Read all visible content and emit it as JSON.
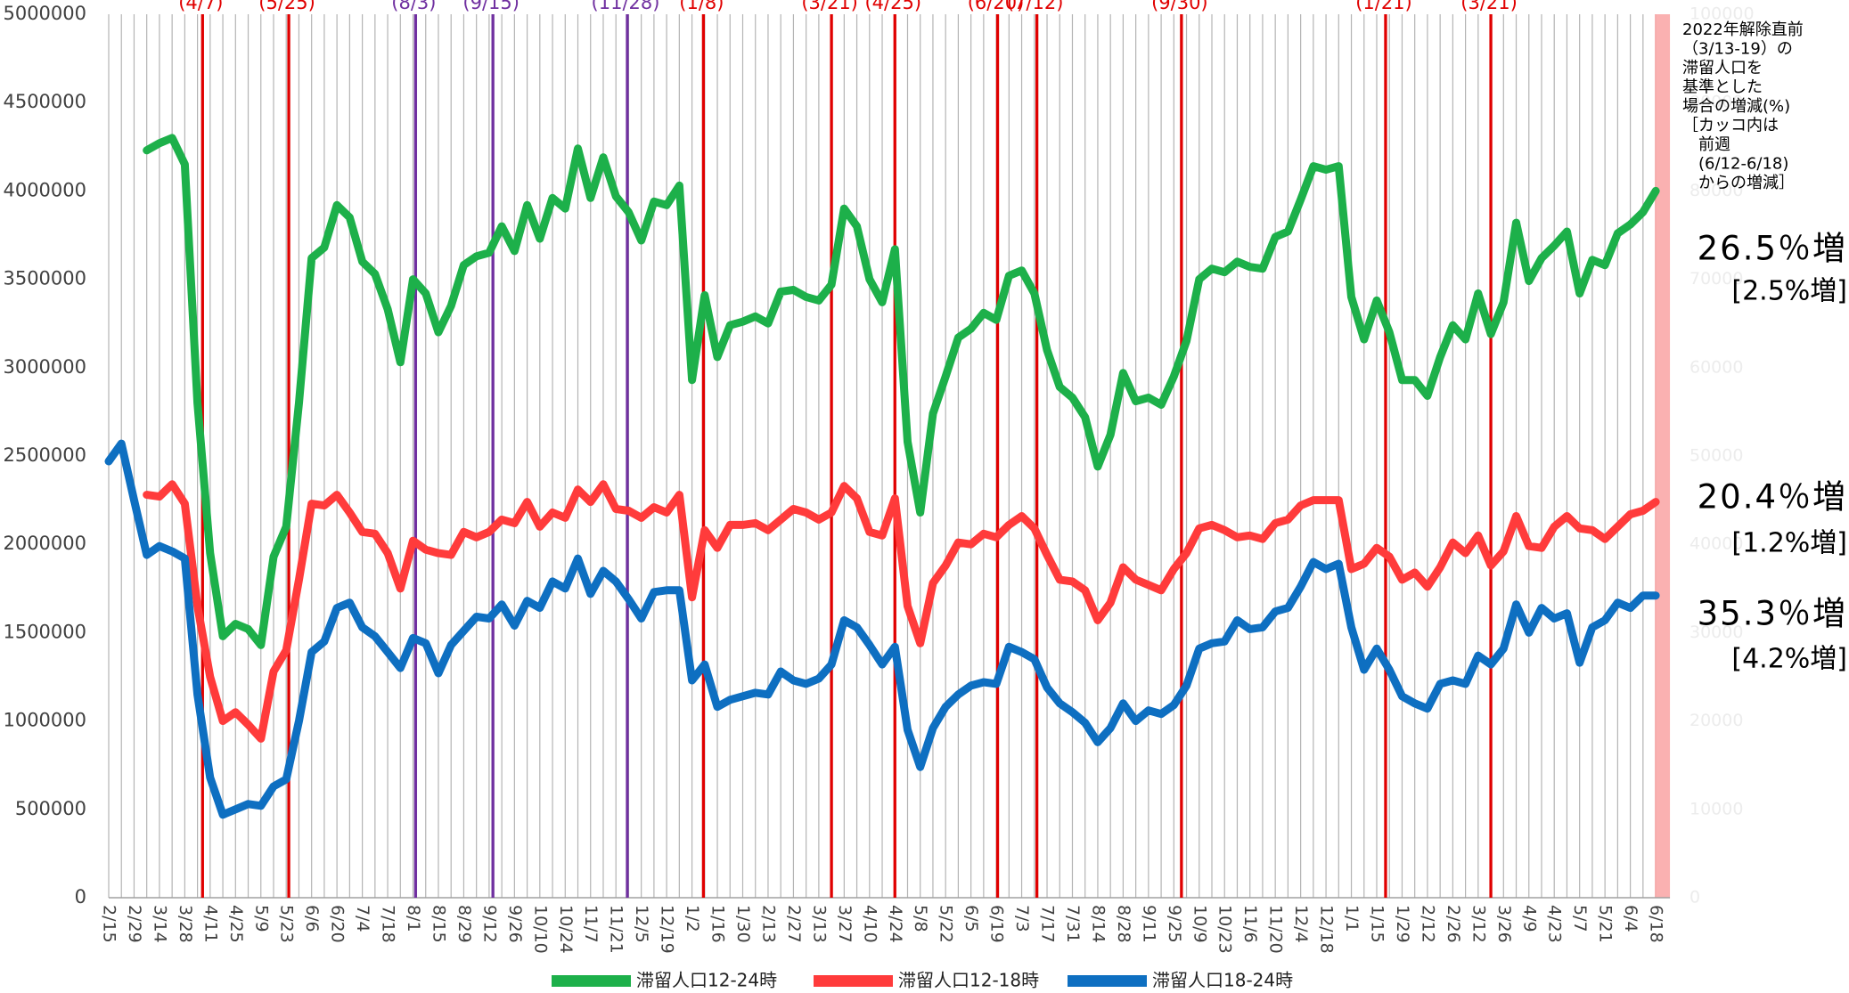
{
  "chart_data": {
    "type": "line",
    "categories": [
      "2/15",
      null,
      "2/29",
      null,
      "3/14",
      null,
      "3/28",
      null,
      "4/11",
      null,
      "4/25",
      null,
      "5/9",
      null,
      "5/23",
      null,
      "6/6",
      null,
      "6/20",
      null,
      "7/4",
      null,
      "7/18",
      null,
      "8/1",
      null,
      "8/15",
      null,
      "8/29",
      null,
      "9/12",
      null,
      "9/26",
      null,
      "10/10",
      null,
      "10/24",
      null,
      "11/7",
      null,
      "11/21",
      null,
      "12/5",
      null,
      "12/19",
      null,
      "1/2",
      null,
      "1/16",
      null,
      "1/30",
      null,
      "2/13",
      null,
      "2/27",
      null,
      "3/13",
      null,
      "3/27",
      null,
      "4/10",
      null,
      "4/24",
      null,
      "5/8",
      null,
      "5/22",
      null,
      "6/5",
      null,
      "6/19",
      null,
      "7/3",
      null,
      "7/17",
      null,
      "7/31",
      null,
      "8/14",
      null,
      "8/28",
      null,
      "9/11",
      null,
      "9/25",
      null,
      "10/9",
      null,
      "10/23",
      null,
      "11/6",
      null,
      "11/20",
      null,
      "12/4",
      null,
      "12/18",
      null,
      "1/1",
      null,
      "1/15",
      null,
      "1/29",
      null,
      "2/12",
      null,
      "2/26",
      null,
      "3/12",
      null,
      "3/26",
      null,
      "4/9",
      null,
      "4/23",
      null,
      "5/7",
      null,
      "5/21",
      null,
      "6/4",
      null,
      "6/18"
    ],
    "series": [
      {
        "name": "滞留人口12-24時",
        "color": "#1db04a",
        "values": [
          null,
          null,
          null,
          4230000,
          4270000,
          4300000,
          4150000,
          2800000,
          1950000,
          1480000,
          1550000,
          1520000,
          1430000,
          1930000,
          2100000,
          2800000,
          3620000,
          3680000,
          3920000,
          3850000,
          3600000,
          3530000,
          3330000,
          3030000,
          3500000,
          3420000,
          3200000,
          3350000,
          3580000,
          3630000,
          3650000,
          3800000,
          3660000,
          3920000,
          3730000,
          3960000,
          3900000,
          4240000,
          3960000,
          4190000,
          3970000,
          3880000,
          3720000,
          3940000,
          3920000,
          4030000,
          2930000,
          3410000,
          3060000,
          3240000,
          3260000,
          3290000,
          3250000,
          3430000,
          3440000,
          3400000,
          3380000,
          3470000,
          3900000,
          3800000,
          3500000,
          3370000,
          3670000,
          2580000,
          2180000,
          2740000,
          2950000,
          3170000,
          3220000,
          3310000,
          3270000,
          3520000,
          3550000,
          3420000,
          3100000,
          2890000,
          2830000,
          2720000,
          2440000,
          2620000,
          2970000,
          2810000,
          2830000,
          2790000,
          2950000,
          3150000,
          3500000,
          3560000,
          3540000,
          3600000,
          3570000,
          3560000,
          3740000,
          3770000,
          3950000,
          4140000,
          4120000,
          4140000,
          3400000,
          3160000,
          3380000,
          3200000,
          2930000,
          2930000,
          2840000,
          3060000,
          3240000,
          3160000,
          3420000,
          3190000,
          3370000,
          3820000,
          3490000,
          3620000,
          3690000,
          3770000,
          3420000,
          3610000,
          3580000,
          3760000,
          3810000,
          3880000,
          4000000
        ]
      },
      {
        "name": "滞留人口12-18時",
        "color": "#ff3b3b",
        "values": [
          null,
          null,
          null,
          2280000,
          2270000,
          2340000,
          2230000,
          1650000,
          1250000,
          1000000,
          1050000,
          980000,
          900000,
          1280000,
          1400000,
          1800000,
          2230000,
          2220000,
          2280000,
          2180000,
          2070000,
          2060000,
          1950000,
          1750000,
          2020000,
          1970000,
          1950000,
          1940000,
          2070000,
          2040000,
          2070000,
          2140000,
          2120000,
          2240000,
          2100000,
          2180000,
          2150000,
          2310000,
          2240000,
          2340000,
          2200000,
          2190000,
          2150000,
          2210000,
          2180000,
          2280000,
          1700000,
          2080000,
          1980000,
          2110000,
          2110000,
          2120000,
          2080000,
          2140000,
          2200000,
          2180000,
          2140000,
          2180000,
          2330000,
          2260000,
          2070000,
          2050000,
          2260000,
          1650000,
          1440000,
          1780000,
          1880000,
          2010000,
          2000000,
          2060000,
          2040000,
          2110000,
          2160000,
          2090000,
          1940000,
          1800000,
          1790000,
          1740000,
          1570000,
          1670000,
          1870000,
          1800000,
          1770000,
          1740000,
          1860000,
          1950000,
          2090000,
          2110000,
          2080000,
          2040000,
          2050000,
          2030000,
          2120000,
          2140000,
          2220000,
          2250000,
          2250000,
          2250000,
          1860000,
          1890000,
          1980000,
          1930000,
          1800000,
          1840000,
          1760000,
          1870000,
          2010000,
          1950000,
          2050000,
          1880000,
          1960000,
          2160000,
          1990000,
          1980000,
          2100000,
          2160000,
          2090000,
          2080000,
          2030000,
          2100000,
          2170000,
          2190000,
          2240000
        ]
      },
      {
        "name": "滞留人口18-24時",
        "color": "#0e6fc1",
        "values": [
          2470000,
          2570000,
          2250000,
          1940000,
          1990000,
          1960000,
          1920000,
          1150000,
          680000,
          470000,
          500000,
          530000,
          520000,
          630000,
          670000,
          1000000,
          1390000,
          1450000,
          1640000,
          1670000,
          1530000,
          1480000,
          1390000,
          1300000,
          1470000,
          1440000,
          1270000,
          1430000,
          1510000,
          1590000,
          1580000,
          1660000,
          1540000,
          1680000,
          1640000,
          1790000,
          1750000,
          1920000,
          1720000,
          1850000,
          1790000,
          1690000,
          1580000,
          1730000,
          1740000,
          1740000,
          1230000,
          1320000,
          1080000,
          1120000,
          1140000,
          1160000,
          1150000,
          1280000,
          1230000,
          1210000,
          1240000,
          1320000,
          1570000,
          1530000,
          1430000,
          1320000,
          1420000,
          950000,
          740000,
          960000,
          1080000,
          1150000,
          1200000,
          1220000,
          1210000,
          1420000,
          1390000,
          1350000,
          1190000,
          1100000,
          1050000,
          990000,
          880000,
          960000,
          1100000,
          1000000,
          1060000,
          1040000,
          1090000,
          1200000,
          1410000,
          1440000,
          1450000,
          1570000,
          1520000,
          1530000,
          1620000,
          1640000,
          1760000,
          1900000,
          1860000,
          1890000,
          1530000,
          1290000,
          1410000,
          1290000,
          1140000,
          1100000,
          1070000,
          1210000,
          1230000,
          1210000,
          1370000,
          1320000,
          1410000,
          1660000,
          1500000,
          1640000,
          1580000,
          1610000,
          1330000,
          1530000,
          1570000,
          1670000,
          1640000,
          1710000,
          1710000
        ]
      }
    ],
    "ylim": [
      0,
      5000000
    ],
    "yticks": [
      0,
      500000,
      1000000,
      1500000,
      2000000,
      2500000,
      3000000,
      3500000,
      4000000,
      4500000,
      5000000
    ],
    "y2lim": [
      0,
      100000
    ],
    "y2ticks": [
      0,
      10000,
      20000,
      30000,
      40000,
      50000,
      60000,
      70000,
      80000,
      90000,
      100000
    ],
    "events": [
      {
        "label": "(4/7)",
        "position": 7.4,
        "color": "#e00000"
      },
      {
        "label": "(5/25)",
        "position": 14.2,
        "color": "#e00000"
      },
      {
        "label": "(8/3)",
        "position": 24.2,
        "color": "#7030a0"
      },
      {
        "label": "(9/15)",
        "position": 30.3,
        "color": "#7030a0"
      },
      {
        "label": "(11/28)",
        "position": 40.9,
        "color": "#7030a0"
      },
      {
        "label": "(1/8)",
        "position": 46.9,
        "color": "#e00000"
      },
      {
        "label": "(3/21)",
        "position": 57,
        "color": "#e00000"
      },
      {
        "label": "(4/25)",
        "position": 62,
        "color": "#e00000"
      },
      {
        "label": "(6/20)",
        "position": 70.1,
        "color": "#e00000"
      },
      {
        "label": "(7/12)",
        "position": 73.2,
        "color": "#e00000"
      },
      {
        "label": "(9/30)",
        "position": 84.6,
        "color": "#e00000"
      },
      {
        "label": "(1/21)",
        "position": 100.7,
        "color": "#e00000"
      },
      {
        "label": "(3/21)",
        "position": 109,
        "color": "#e00000"
      }
    ],
    "annotation": {
      "lines": [
        "2022年解除直前",
        "（3/13-19）の",
        "滞留人口を",
        "基準とした",
        "場合の増減(%)",
        "［カッコ内は",
        "　前週",
        "　(6/12-6/18)",
        "　からの増減］"
      ],
      "results": [
        {
          "total": "26.5％増",
          "weekly": "[2.5%増]"
        },
        {
          "total": "20.4％増",
          "weekly": "[1.2%増]"
        },
        {
          "total": "35.3％増",
          "weekly": "[4.2%増]"
        }
      ]
    },
    "grid": true
  }
}
